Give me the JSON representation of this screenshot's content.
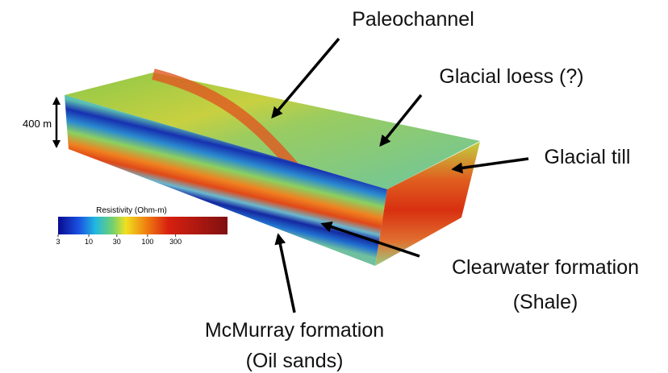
{
  "labels": {
    "paleochannel": "Paleochannel",
    "loess": "Glacial loess (?)",
    "till": "Glacial till",
    "clearwater": [
      "Clearwater formation",
      "(Shale)"
    ],
    "mcmurray": [
      "McMurray formation",
      "(Oil sands)"
    ]
  },
  "scale_bar": {
    "label": "400 m"
  },
  "colorbar": {
    "title": "Resistivity (Ohm-m)",
    "log": true,
    "range": [
      3,
      2300
    ],
    "ticks": [
      3,
      10,
      30,
      100,
      300
    ]
  }
}
